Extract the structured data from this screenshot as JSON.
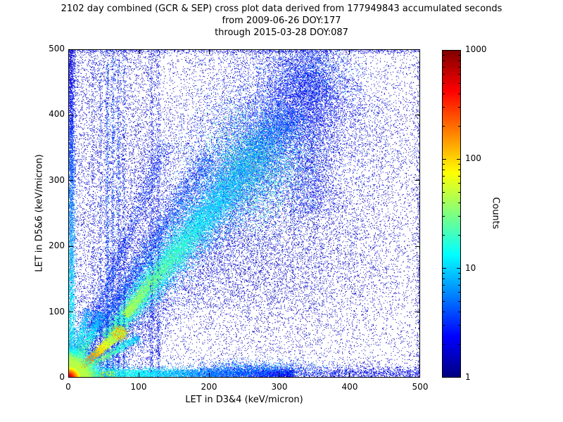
{
  "chart_data": {
    "type": "heatmap",
    "title": "2102 day combined (GCR & SEP) cross plot data derived from 177949843 accumulated seconds",
    "subtitle_lines": [
      "from 2009-06-26 DOY:177",
      "through 2015-03-28 DOY:087"
    ],
    "xlabel": "LET in D3&4 (keV/micron)",
    "ylabel": "LET in D5&6 (keV/micron)",
    "xlim": [
      0,
      500
    ],
    "ylim": [
      0,
      500
    ],
    "xticks": [
      "0",
      "100",
      "200",
      "300",
      "400",
      "500"
    ],
    "yticks": [
      "0",
      "100",
      "200",
      "300",
      "400",
      "500"
    ],
    "grid": false,
    "colormap": "jet",
    "background_color": "#ffffff",
    "colorbar": {
      "label": "Counts",
      "scale": "log",
      "range": [
        1,
        1000
      ],
      "ticks": [
        {
          "label": "1",
          "frac": 0
        },
        {
          "label": "10",
          "frac": 0.3333
        },
        {
          "label": "100",
          "frac": 0.6667
        },
        {
          "label": "1000",
          "frac": 1
        }
      ]
    },
    "features": [
      {
        "type": "uniform",
        "n": 12000,
        "x": [
          0,
          500
        ],
        "y": [
          0,
          500
        ],
        "t": [
          0.02,
          0.1
        ]
      },
      {
        "type": "uniform",
        "n": 5000,
        "x": [
          0,
          130
        ],
        "y": [
          0,
          500
        ],
        "t": [
          0.03,
          0.12
        ]
      },
      {
        "type": "blob",
        "n": 7000,
        "cx": 330,
        "cy": 300,
        "sx": 120,
        "sy": 140,
        "t": [
          0.03,
          0.12
        ]
      },
      {
        "type": "blob",
        "n": 3000,
        "cx": 280,
        "cy": 170,
        "sx": 85,
        "sy": 60,
        "t": [
          0.03,
          0.1
        ]
      },
      {
        "type": "band",
        "n": 12000,
        "p0": [
          30,
          30
        ],
        "p1": [
          370,
          480
        ],
        "w": [
          18,
          90
        ],
        "t": [
          0.04,
          0.2
        ],
        "bias": 1.1
      },
      {
        "type": "vline",
        "n": 2500,
        "x": 345,
        "jitter": 18,
        "y": [
          250,
          500
        ],
        "t": [
          0.05,
          0.18
        ]
      },
      {
        "type": "band",
        "n": 15000,
        "p0": [
          55,
          60
        ],
        "p1": [
          350,
          460
        ],
        "w": [
          5,
          38
        ],
        "t": [
          0.1,
          0.45
        ],
        "bias": 1.15,
        "grad": 1
      },
      {
        "type": "band",
        "n": 8000,
        "p0": [
          80,
          95
        ],
        "p1": [
          320,
          410
        ],
        "w": [
          3,
          18
        ],
        "t": [
          0.18,
          0.55
        ],
        "bias": 1.1,
        "grad": 1
      },
      {
        "type": "blob",
        "n": 4000,
        "cx": 265,
        "cy": 325,
        "sx": 40,
        "sy": 45,
        "t": [
          0.18,
          0.55
        ]
      },
      {
        "type": "blob",
        "n": 1800,
        "cx": 345,
        "cy": 462,
        "sx": 35,
        "sy": 33,
        "t": [
          0.08,
          0.3
        ]
      },
      {
        "type": "band",
        "n": 2500,
        "p0": [
          40,
          70
        ],
        "p1": [
          200,
          340
        ],
        "w": [
          4,
          10
        ],
        "t": [
          0.08,
          0.3
        ]
      },
      {
        "type": "band",
        "n": 1500,
        "p0": [
          30,
          75
        ],
        "p1": [
          140,
          360
        ],
        "w": [
          3,
          8
        ],
        "t": [
          0.07,
          0.25
        ]
      },
      {
        "type": "vline",
        "n": 900,
        "x": 55,
        "jitter": 1.3,
        "y": [
          0,
          500
        ],
        "t": [
          0.06,
          0.3
        ],
        "bias": 1.4
      },
      {
        "type": "vline",
        "n": 750,
        "x": 63,
        "jitter": 1.3,
        "y": [
          0,
          500
        ],
        "t": [
          0.06,
          0.3
        ],
        "bias": 1.4
      },
      {
        "type": "vline",
        "n": 650,
        "x": 71,
        "jitter": 1.3,
        "y": [
          0,
          500
        ],
        "t": [
          0.06,
          0.28
        ],
        "bias": 1.4
      },
      {
        "type": "vline",
        "n": 450,
        "x": 79,
        "jitter": 1.2,
        "y": [
          0,
          500
        ],
        "t": [
          0.05,
          0.25
        ],
        "bias": 1.4
      },
      {
        "type": "vline",
        "n": 350,
        "x": 45,
        "jitter": 1.2,
        "y": [
          0,
          500
        ],
        "t": [
          0.05,
          0.25
        ],
        "bias": 1.4
      },
      {
        "type": "vline",
        "n": 300,
        "x": 35,
        "jitter": 1.2,
        "y": [
          0,
          500
        ],
        "t": [
          0.05,
          0.22
        ],
        "bias": 1.4
      },
      {
        "type": "vline",
        "n": 500,
        "x": 118,
        "jitter": 1.4,
        "y": [
          0,
          500
        ],
        "t": [
          0.05,
          0.22
        ],
        "bias": 1.3
      },
      {
        "type": "vline",
        "n": 420,
        "x": 128,
        "jitter": 1.4,
        "y": [
          0,
          500
        ],
        "t": [
          0.05,
          0.22
        ],
        "bias": 1.3
      },
      {
        "type": "hline",
        "n": 800,
        "y": 498,
        "jitter": 2,
        "x": [
          0,
          500
        ],
        "t": [
          0.04,
          0.15
        ]
      },
      {
        "type": "vline",
        "n": 500,
        "x": 498,
        "jitter": 2,
        "y": [
          0,
          500
        ],
        "t": [
          0.03,
          0.12
        ]
      },
      {
        "type": "vline",
        "n": 4000,
        "x": 3.5,
        "jitter": 3,
        "y": [
          15,
          500
        ],
        "t": [
          0.08,
          0.42
        ],
        "grad": 1
      },
      {
        "type": "hline",
        "n": 6000,
        "y": 6,
        "jitter": 4.5,
        "x": [
          10,
          320
        ],
        "t": [
          0.1,
          0.48
        ],
        "grad": 1
      },
      {
        "type": "hline",
        "n": 1500,
        "y": 7,
        "jitter": 6,
        "x": [
          300,
          500
        ],
        "t": [
          0.04,
          0.18
        ]
      },
      {
        "type": "blob",
        "n": 1500,
        "cx": 260,
        "cy": 13,
        "sx": 45,
        "sy": 7,
        "t": [
          0.1,
          0.35
        ]
      },
      {
        "type": "band",
        "n": 1200,
        "p0": [
          6,
          8
        ],
        "p1": [
          48,
          100
        ],
        "w": [
          2,
          5
        ],
        "t": [
          0.25,
          0.6
        ],
        "grad": 1
      },
      {
        "type": "band",
        "n": 900,
        "p0": [
          5,
          10
        ],
        "p1": [
          28,
          105
        ],
        "w": [
          1.5,
          4
        ],
        "t": [
          0.25,
          0.55
        ],
        "grad": 1
      },
      {
        "type": "band",
        "n": 1200,
        "p0": [
          10,
          6
        ],
        "p1": [
          100,
          62
        ],
        "w": [
          1.5,
          4
        ],
        "t": [
          0.3,
          0.65
        ],
        "grad": 1
      },
      {
        "type": "band",
        "n": 5000,
        "p0": [
          0,
          0
        ],
        "p1": [
          76,
          72
        ],
        "w": [
          1.5,
          3.5
        ],
        "t": [
          0.45,
          0.95
        ],
        "grad": 1
      },
      {
        "type": "blob",
        "n": 900,
        "cx": 72,
        "cy": 68,
        "sx": 5,
        "sy": 5,
        "t": [
          0.45,
          0.8
        ]
      },
      {
        "type": "band",
        "n": 3500,
        "p0": [
          0,
          3
        ],
        "p1": [
          65,
          5
        ],
        "w": [
          1.5,
          2.5
        ],
        "t": [
          0.5,
          0.95
        ],
        "grad": 1
      },
      {
        "type": "origin",
        "n": 6000,
        "scale": 16,
        "t": [
          0.3,
          0.85
        ]
      },
      {
        "type": "origin",
        "n": 9000,
        "scale": 6,
        "t": [
          0.55,
          1.0
        ]
      }
    ]
  }
}
